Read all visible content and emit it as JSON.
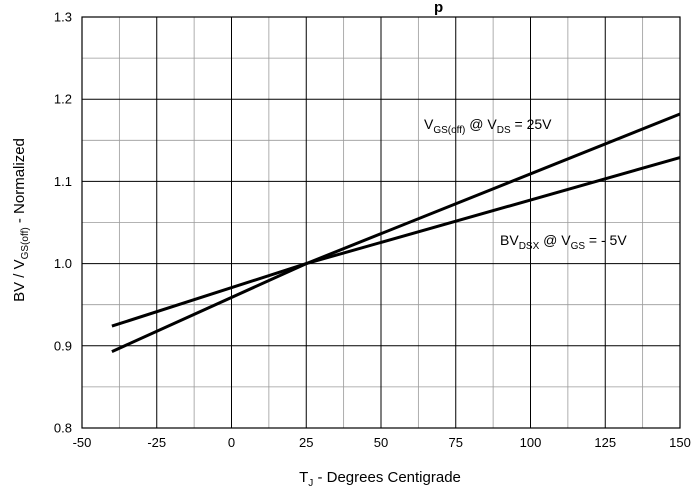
{
  "chart_data": {
    "type": "line",
    "title_fragment": "p",
    "xlabel": {
      "main": "T",
      "sub": "J",
      "rest": " - Degrees Centigrade"
    },
    "ylabel": {
      "pre": "BV / V",
      "sub": "GS(off)",
      "post": " - Normalized"
    },
    "xlim": [
      -50,
      150
    ],
    "ylim": [
      0.8,
      1.3
    ],
    "x_ticks": [
      -50,
      -25,
      0,
      25,
      50,
      75,
      100,
      125,
      150
    ],
    "x_tick_labels": [
      "-50",
      "-25",
      "0",
      "25",
      "50",
      "75",
      "100",
      "125",
      "150"
    ],
    "y_ticks": [
      0.8,
      0.9,
      1.0,
      1.1,
      1.2,
      1.3
    ],
    "y_tick_labels": [
      "0.8",
      "0.9",
      "1.0",
      "1.1",
      "1.2",
      "1.3"
    ],
    "grid": true,
    "series": [
      {
        "label_parts": [
          {
            "t": "V"
          },
          {
            "t": "GS(off)",
            "sub": true
          },
          {
            "t": " @ V"
          },
          {
            "t": "DS",
            "sub": true
          },
          {
            "t": " = 25V"
          }
        ],
        "x": [
          -40,
          25,
          150
        ],
        "y": [
          0.893,
          1.0,
          1.182
        ]
      },
      {
        "label_parts": [
          {
            "t": "BV"
          },
          {
            "t": "DSX",
            "sub": true
          },
          {
            "t": " @ V"
          },
          {
            "t": "GS",
            "sub": true
          },
          {
            "t": " = - 5V"
          }
        ],
        "x": [
          -40,
          25,
          150
        ],
        "y": [
          0.924,
          1.0,
          1.129
        ]
      }
    ]
  }
}
